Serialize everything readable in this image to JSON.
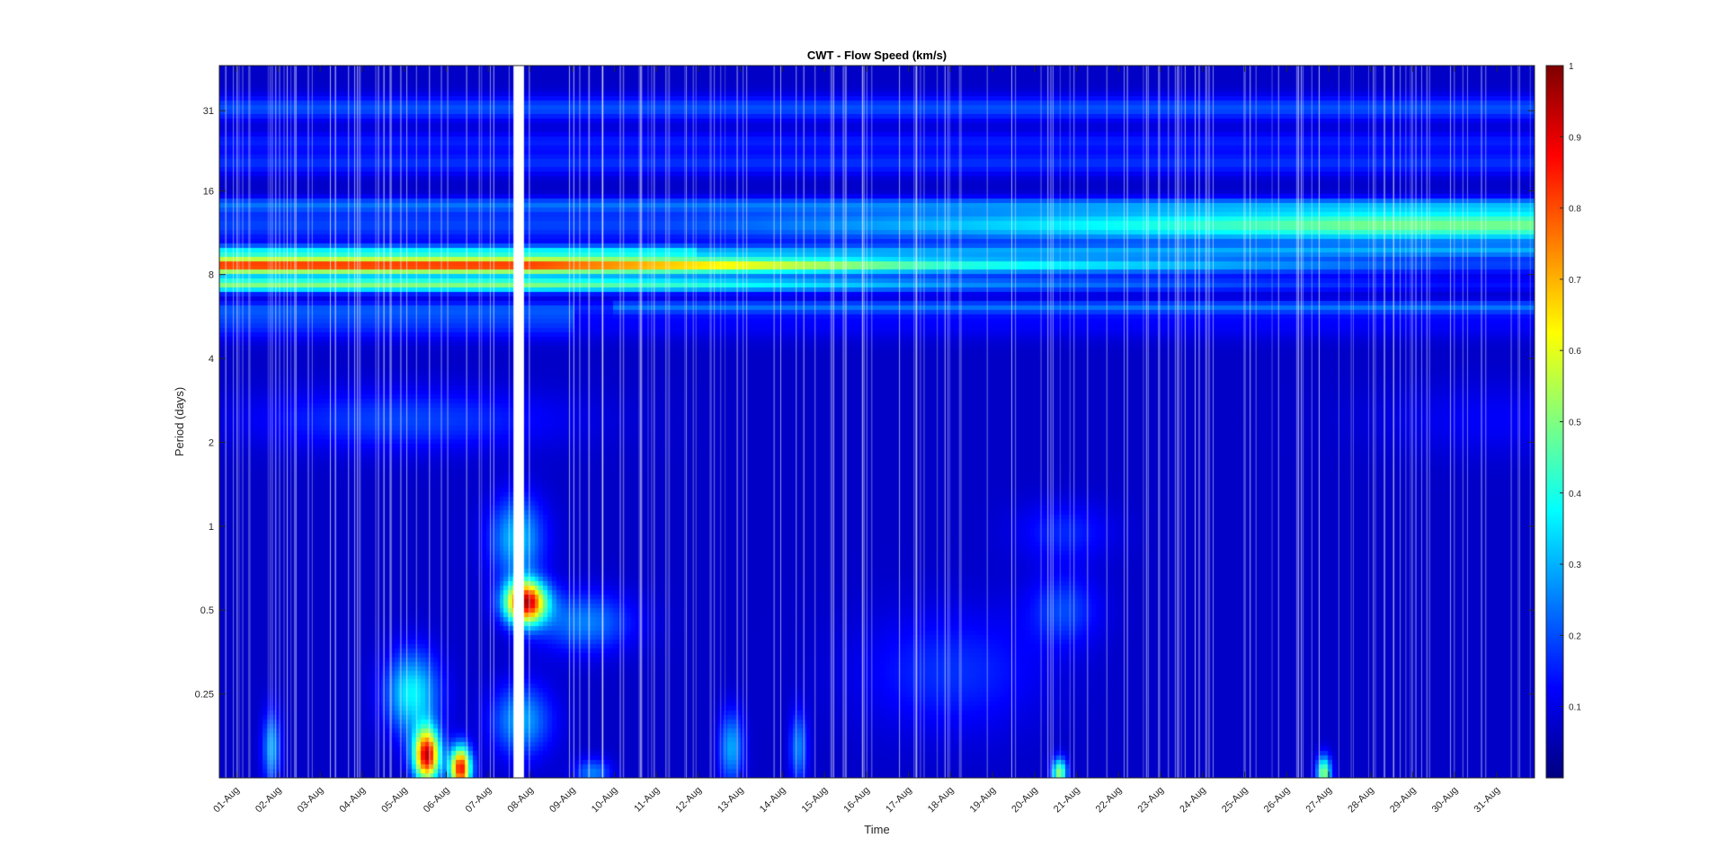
{
  "chart_data": {
    "type": "heatmap",
    "title": "CWT - Flow Speed (km/s)",
    "xlabel": "Time",
    "ylabel": "Period (days)",
    "x_tick_labels": [
      "01-Aug",
      "02-Aug",
      "03-Aug",
      "04-Aug",
      "05-Aug",
      "06-Aug",
      "07-Aug",
      "08-Aug",
      "09-Aug",
      "10-Aug",
      "11-Aug",
      "12-Aug",
      "13-Aug",
      "14-Aug",
      "15-Aug",
      "16-Aug",
      "17-Aug",
      "18-Aug",
      "19-Aug",
      "20-Aug",
      "21-Aug",
      "22-Aug",
      "23-Aug",
      "24-Aug",
      "25-Aug",
      "26-Aug",
      "27-Aug",
      "28-Aug",
      "29-Aug",
      "30-Aug",
      "31-Aug"
    ],
    "xlim": [
      0.6,
      31.9
    ],
    "y_scale": "log2",
    "y_ticks": [
      0.25,
      0.5,
      1,
      2,
      4,
      8,
      16,
      31
    ],
    "y_tick_labels": [
      "0.25",
      "0.5",
      "1",
      "2",
      "4",
      "8",
      "16",
      "31"
    ],
    "ylim": [
      0.125,
      45
    ],
    "colormap": "jet",
    "clim": [
      0,
      1
    ],
    "colorbar_ticks": [
      0.1,
      0.2,
      0.3,
      0.4,
      0.5,
      0.6,
      0.7,
      0.8,
      0.9,
      1
    ],
    "colorbar_tick_labels": [
      "0.1",
      "0.2",
      "0.3",
      "0.4",
      "0.5",
      "0.6",
      "0.7",
      "0.8",
      "0.9",
      "1"
    ],
    "data_gap": {
      "day_start": 7.6,
      "day_end": 7.85
    },
    "features": [
      {
        "name": "8-day band",
        "day_start": 1,
        "day_end": 8,
        "period": 8.5,
        "value": 0.8
      },
      {
        "name": "8-day band decay",
        "day_start": 8,
        "day_end": 18,
        "period": 8.0,
        "value_start": 0.75,
        "value_end": 0.4
      },
      {
        "name": "11-day band",
        "day_start": 12,
        "day_end": 31.9,
        "period": 11.5,
        "value_start": 0.25,
        "value_end": 0.45
      },
      {
        "name": "0.5-day burst",
        "day": 7.9,
        "period": 0.5,
        "value": 0.9
      },
      {
        "name": "short-period burst",
        "day": 5.5,
        "period": 0.15,
        "value": 0.95
      },
      {
        "name": "short-period burst",
        "day": 6.3,
        "period": 0.14,
        "value": 0.95
      }
    ]
  }
}
